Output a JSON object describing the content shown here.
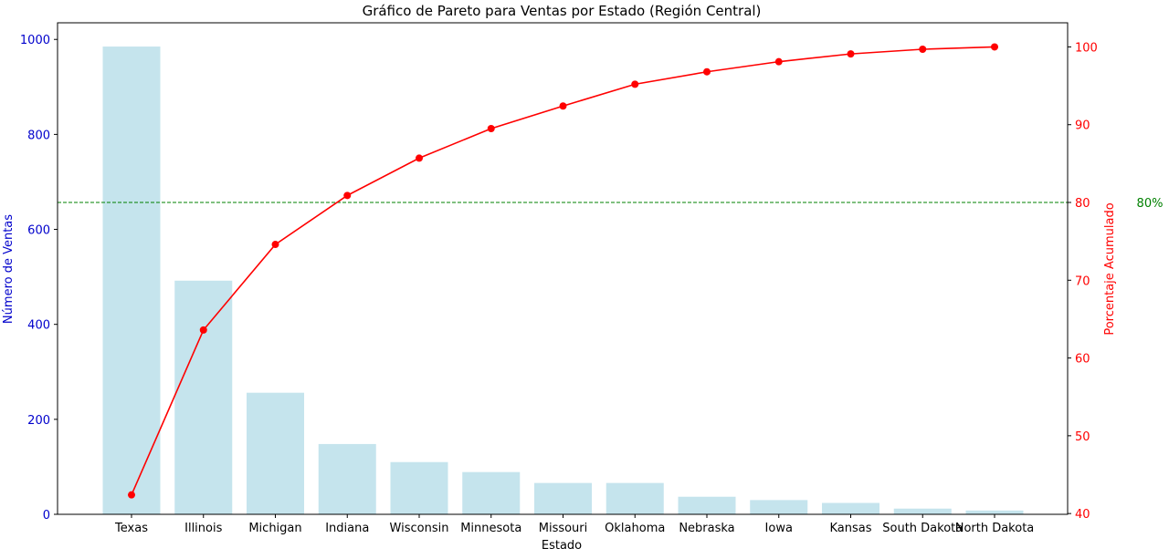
{
  "chart_data": {
    "type": "bar",
    "title": "Gráfico de Pareto para Ventas por Estado (Región Central)",
    "xlabel": "Estado",
    "ylabel_left": "Número de Ventas",
    "ylabel_right": "Porcentaje Acumulado",
    "categories": [
      "Texas",
      "Illinois",
      "Michigan",
      "Indiana",
      "Wisconsin",
      "Minnesota",
      "Missouri",
      "Oklahoma",
      "Nebraska",
      "Iowa",
      "Kansas",
      "South Dakota",
      "North Dakota"
    ],
    "series": [
      {
        "type": "bar",
        "axis": "left",
        "color": "#add8e6",
        "values": [
          985,
          492,
          256,
          148,
          110,
          89,
          66,
          66,
          37,
          30,
          24,
          12,
          8
        ]
      },
      {
        "type": "line",
        "axis": "right",
        "color": "#ff0000",
        "values": [
          42.4,
          63.6,
          74.6,
          80.9,
          85.7,
          89.5,
          92.4,
          95.2,
          96.8,
          98.1,
          99.1,
          99.7,
          100.0
        ]
      }
    ],
    "ylim_left": [
      0,
      1035
    ],
    "yticks_left": [
      0,
      200,
      400,
      600,
      800,
      1000
    ],
    "ylim_right": [
      39.9,
      103.1
    ],
    "yticks_right": [
      40,
      50,
      60,
      70,
      80,
      90,
      100
    ],
    "reference_line": {
      "value": 80,
      "label": "80%",
      "color": "#008000",
      "style": "dashed"
    },
    "grid": false,
    "left_axis_color": "#0000cc",
    "right_axis_color": "#ff0000"
  }
}
